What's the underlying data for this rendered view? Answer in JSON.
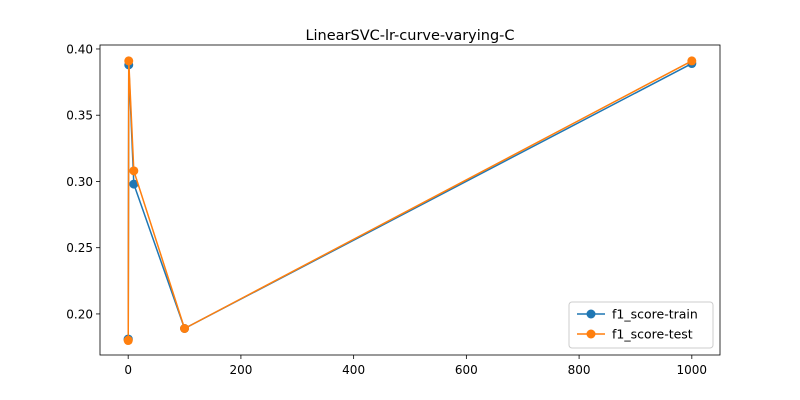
{
  "chart_data": {
    "type": "line",
    "title": "LinearSVC-lr-curve-varying-C",
    "xlabel": "",
    "ylabel": "",
    "x": [
      0.01,
      0.1,
      1,
      10,
      100,
      1000
    ],
    "series": [
      {
        "name": "f1_score-train",
        "color": "#1f77b4",
        "values": [
          0.181,
          0.181,
          0.388,
          0.298,
          0.189,
          0.389
        ]
      },
      {
        "name": "f1_score-test",
        "color": "#ff7f0e",
        "values": [
          0.18,
          0.18,
          0.391,
          0.308,
          0.189,
          0.391
        ]
      }
    ],
    "xlim": [
      -50,
      1050
    ],
    "ylim": [
      0.169,
      0.403
    ],
    "xticks": [
      0,
      200,
      400,
      600,
      800,
      1000
    ],
    "xtick_labels": [
      "0",
      "200",
      "400",
      "600",
      "800",
      "1000"
    ],
    "yticks": [
      0.2,
      0.25,
      0.3,
      0.35,
      0.4
    ],
    "ytick_labels": [
      "0.20",
      "0.25",
      "0.30",
      "0.35",
      "0.40"
    ],
    "grid": false,
    "legend_position": "lower-right",
    "marker": "circle"
  }
}
